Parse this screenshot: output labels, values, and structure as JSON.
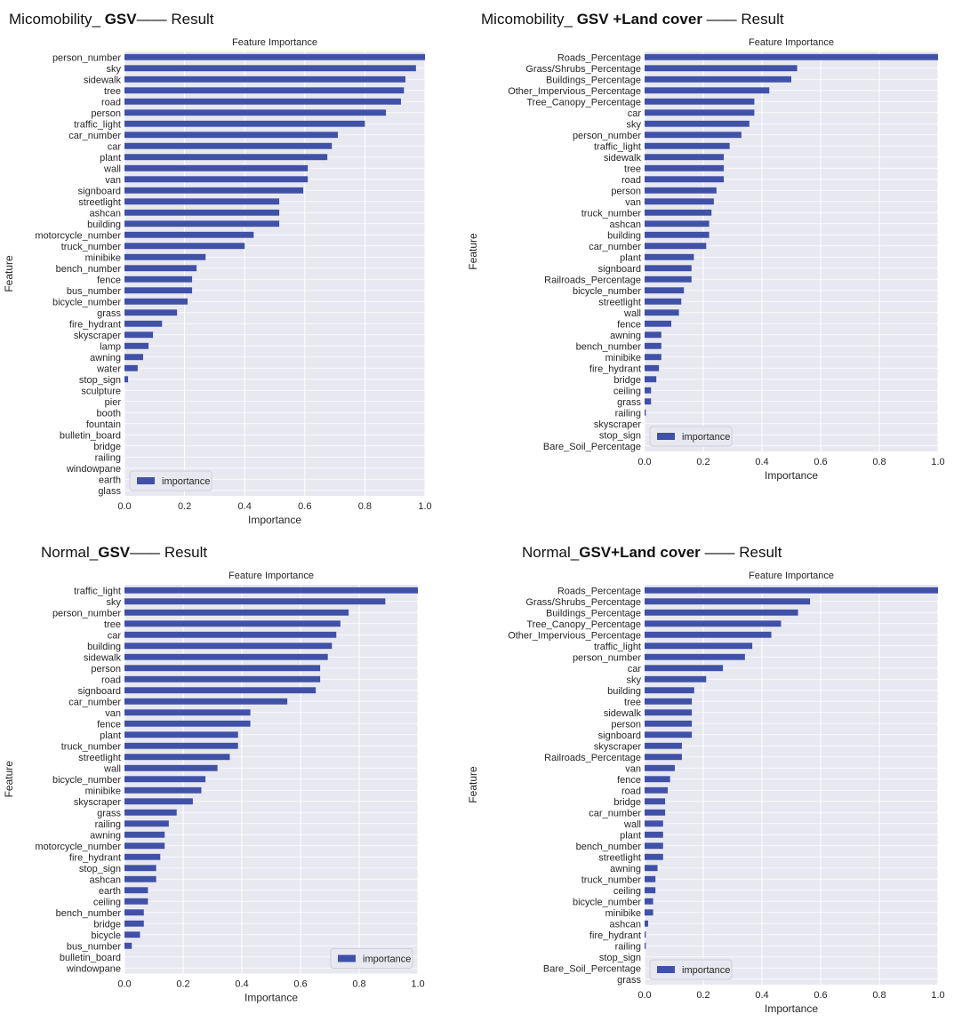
{
  "headings": [
    {
      "prefix": "Micomobility_ ",
      "bold": "GSV",
      "suffix": "—— Result"
    },
    {
      "prefix": "Micomobility_ ",
      "bold": "GSV +Land cover",
      "suffix": " —— Result"
    },
    {
      "prefix": "Normal_",
      "bold": "GSV",
      "suffix": "—— Result"
    },
    {
      "prefix": "Normal_",
      "bold": "GSV+Land cover",
      "suffix": " —— Result"
    }
  ],
  "colors": {
    "bar": "#4051a8",
    "plot_background": "#e8e8f0",
    "grid": "#ffffff"
  },
  "chart_data": [
    {
      "type": "bar",
      "orientation": "horizontal",
      "title": "Feature Importance",
      "xlabel": "Importance",
      "ylabel": "Feature",
      "xlim": [
        0,
        1.0
      ],
      "xticks": [
        "0.0",
        "0.2",
        "0.4",
        "0.6",
        "0.8",
        "1.0"
      ],
      "legend": {
        "label": "importance",
        "placement": "bottom-left"
      },
      "grid": true,
      "categories": [
        "person_number",
        "sky",
        "sidewalk",
        "tree",
        "road",
        "person",
        "traffic_light",
        "car_number",
        "car",
        "plant",
        "wall",
        "van",
        "signboard",
        "streetlight",
        "ashcan",
        "building",
        "motorcycle_number",
        "truck_number",
        "minibike",
        "bench_number",
        "fence",
        "bus_number",
        "bicycle_number",
        "grass",
        "fire_hydrant",
        "skyscraper",
        "lamp",
        "awning",
        "water",
        "stop_sign",
        "sculpture",
        "pier",
        "booth",
        "fountain",
        "bulletin_board",
        "bridge",
        "railing",
        "windowpane",
        "earth",
        "glass"
      ],
      "values": [
        1.0,
        0.97,
        0.935,
        0.93,
        0.92,
        0.87,
        0.8,
        0.71,
        0.69,
        0.675,
        0.61,
        0.61,
        0.595,
        0.515,
        0.515,
        0.515,
        0.43,
        0.4,
        0.27,
        0.24,
        0.225,
        0.225,
        0.21,
        0.175,
        0.125,
        0.095,
        0.08,
        0.062,
        0.044,
        0.012,
        0,
        0,
        0,
        0,
        0,
        0,
        0,
        0,
        0,
        0
      ]
    },
    {
      "type": "bar",
      "orientation": "horizontal",
      "title": "Feature Importance",
      "xlabel": "Importance",
      "ylabel": "Feature",
      "xlim": [
        0,
        1.0
      ],
      "xticks": [
        "0.0",
        "0.2",
        "0.4",
        "0.6",
        "0.8",
        "1.0"
      ],
      "legend": {
        "label": "importance",
        "placement": "bottom-left"
      },
      "grid": true,
      "categories": [
        "Roads_Percentage",
        "Grass/Shrubs_Percentage",
        "Buildings_Percentage",
        "Other_Impervious_Percentage",
        "Tree_Canopy_Percentage",
        "car",
        "sky",
        "person_number",
        "traffic_light",
        "sidewalk",
        "tree",
        "road",
        "person",
        "van",
        "truck_number",
        "ashcan",
        "building",
        "car_number",
        "plant",
        "signboard",
        "Railroads_Percentage",
        "bicycle_number",
        "streetlight",
        "wall",
        "fence",
        "awning",
        "bench_number",
        "minibike",
        "fire_hydrant",
        "bridge",
        "ceiling",
        "grass",
        "railing",
        "skyscraper",
        "stop_sign",
        "Bare_Soil_Percentage"
      ],
      "values": [
        1.0,
        0.52,
        0.5,
        0.425,
        0.374,
        0.374,
        0.357,
        0.33,
        0.29,
        0.27,
        0.27,
        0.27,
        0.245,
        0.236,
        0.228,
        0.22,
        0.22,
        0.21,
        0.168,
        0.16,
        0.16,
        0.134,
        0.125,
        0.117,
        0.091,
        0.057,
        0.057,
        0.057,
        0.049,
        0.04,
        0.022,
        0.022,
        0.004,
        0,
        0,
        0
      ]
    },
    {
      "type": "bar",
      "orientation": "horizontal",
      "title": "Feature Importance",
      "xlabel": "Importance",
      "ylabel": "Feature",
      "xlim": [
        0,
        1.0
      ],
      "xticks": [
        "0.0",
        "0.2",
        "0.4",
        "0.6",
        "0.8",
        "1.0"
      ],
      "legend": {
        "label": "importance",
        "placement": "bottom-right"
      },
      "grid": true,
      "categories": [
        "traffic_light",
        "sky",
        "person_number",
        "tree",
        "car",
        "building",
        "sidewalk",
        "person",
        "road",
        "signboard",
        "car_number",
        "van",
        "fence",
        "plant",
        "truck_number",
        "streetlight",
        "wall",
        "bicycle_number",
        "minibike",
        "skyscraper",
        "grass",
        "railing",
        "awning",
        "motorcycle_number",
        "fire_hydrant",
        "stop_sign",
        "ashcan",
        "earth",
        "ceiling",
        "bench_number",
        "bridge",
        "bicycle",
        "bus_number",
        "bulletin_board",
        "windowpane"
      ],
      "values": [
        1.0,
        0.889,
        0.764,
        0.736,
        0.722,
        0.707,
        0.693,
        0.667,
        0.667,
        0.652,
        0.555,
        0.429,
        0.429,
        0.387,
        0.387,
        0.359,
        0.317,
        0.276,
        0.262,
        0.233,
        0.178,
        0.151,
        0.137,
        0.137,
        0.122,
        0.108,
        0.108,
        0.08,
        0.08,
        0.066,
        0.066,
        0.053,
        0.025,
        0,
        0
      ]
    },
    {
      "type": "bar",
      "orientation": "horizontal",
      "title": "Feature Importance",
      "xlabel": "Importance",
      "ylabel": "Feature",
      "xlim": [
        0,
        1.0
      ],
      "xticks": [
        "0.0",
        "0.2",
        "0.4",
        "0.6",
        "0.8",
        "1.0"
      ],
      "legend": {
        "label": "importance",
        "placement": "bottom-left"
      },
      "grid": true,
      "categories": [
        "Roads_Percentage",
        "Grass/Shrubs_Percentage",
        "Buildings_Percentage",
        "Tree_Canopy_Percentage",
        "Other_Impervious_Percentage",
        "traffic_light",
        "person_number",
        "car",
        "sky",
        "building",
        "tree",
        "sidewalk",
        "person",
        "signboard",
        "skyscraper",
        "Railroads_Percentage",
        "van",
        "fence",
        "road",
        "bridge",
        "car_number",
        "wall",
        "plant",
        "bench_number",
        "streetlight",
        "awning",
        "truck_number",
        "ceiling",
        "bicycle_number",
        "minibike",
        "ashcan",
        "fire_hydrant",
        "railing",
        "stop_sign",
        "Bare_Soil_Percentage",
        "grass"
      ],
      "values": [
        1.0,
        0.564,
        0.523,
        0.465,
        0.432,
        0.367,
        0.342,
        0.267,
        0.21,
        0.169,
        0.161,
        0.161,
        0.161,
        0.161,
        0.127,
        0.127,
        0.103,
        0.087,
        0.079,
        0.07,
        0.07,
        0.063,
        0.063,
        0.063,
        0.063,
        0.044,
        0.037,
        0.037,
        0.029,
        0.029,
        0.012,
        0.004,
        0.004,
        0,
        0,
        0
      ]
    }
  ]
}
